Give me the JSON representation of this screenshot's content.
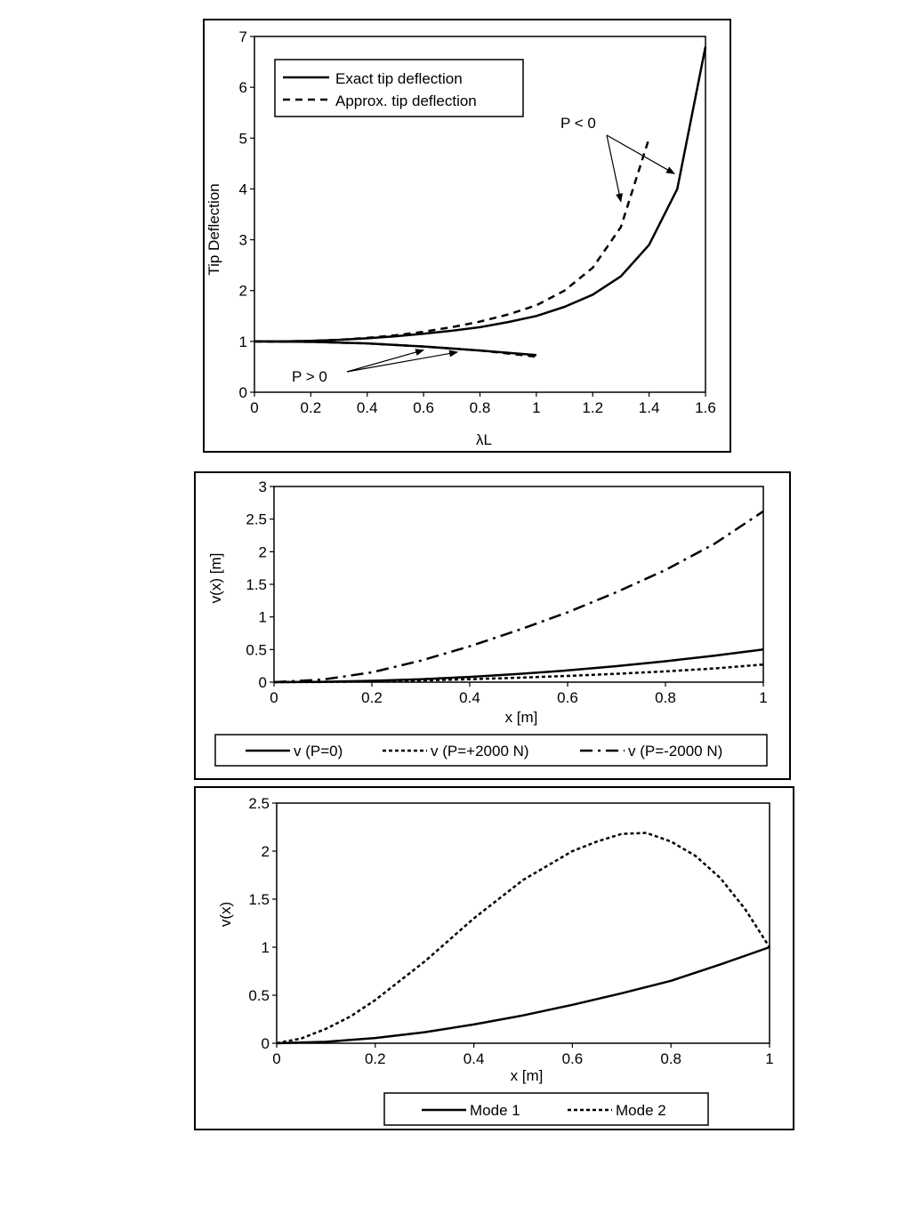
{
  "chart_data": [
    {
      "type": "line",
      "title": "",
      "xlabel": "λL",
      "ylabel": "Tip Deflection",
      "xlim": [
        0,
        1.6
      ],
      "ylim": [
        0,
        7
      ],
      "x_ticks": [
        "0",
        "0.2",
        "0.4",
        "0.6",
        "0.8",
        "1",
        "1.2",
        "1.4",
        "1.6"
      ],
      "y_ticks": [
        "0",
        "1",
        "2",
        "3",
        "4",
        "5",
        "6",
        "7"
      ],
      "legend_position": "top-left",
      "series": [
        {
          "name": "Exact tip deflection",
          "style": "solid",
          "group": "P<0",
          "x": [
            0,
            0.1,
            0.2,
            0.3,
            0.4,
            0.5,
            0.6,
            0.7,
            0.8,
            0.9,
            1.0,
            1.1,
            1.2,
            1.3,
            1.4,
            1.5,
            1.6
          ],
          "y": [
            1.0,
            1.0,
            1.01,
            1.03,
            1.06,
            1.1,
            1.15,
            1.21,
            1.28,
            1.38,
            1.5,
            1.68,
            1.92,
            2.28,
            2.9,
            4.0,
            6.8
          ]
        },
        {
          "name": "Approx. tip deflection",
          "style": "dashed",
          "group": "P<0",
          "x": [
            0,
            0.1,
            0.2,
            0.3,
            0.4,
            0.5,
            0.6,
            0.7,
            0.8,
            0.9,
            1.0,
            1.1,
            1.2,
            1.3,
            1.4
          ],
          "y": [
            1.0,
            1.0,
            1.01,
            1.03,
            1.07,
            1.12,
            1.19,
            1.28,
            1.39,
            1.53,
            1.71,
            2.0,
            2.45,
            3.25,
            5.0
          ]
        },
        {
          "name": "Exact tip deflection",
          "style": "solid",
          "group": "P>0",
          "x": [
            0,
            0.2,
            0.4,
            0.6,
            0.8,
            1.0
          ],
          "y": [
            1.0,
            0.99,
            0.96,
            0.9,
            0.82,
            0.73
          ]
        },
        {
          "name": "Approx. tip deflection",
          "style": "dashed",
          "group": "P>0",
          "x": [
            0,
            0.2,
            0.4,
            0.6,
            0.8,
            1.0
          ],
          "y": [
            1.0,
            0.99,
            0.96,
            0.9,
            0.82,
            0.7
          ]
        }
      ],
      "annotations": [
        {
          "text": "P < 0",
          "arrows_to": [
            [
              1.3,
              3.75
            ],
            [
              1.49,
              4.3
            ]
          ]
        },
        {
          "text": "P > 0",
          "arrows_to": [
            [
              0.6,
              0.83
            ],
            [
              0.72,
              0.79
            ]
          ]
        }
      ]
    },
    {
      "type": "line",
      "title": "",
      "xlabel": "x [m]",
      "ylabel": "v(x) [m]",
      "xlim": [
        0,
        1
      ],
      "ylim": [
        0,
        3
      ],
      "x_ticks": [
        "0",
        "0.2",
        "0.4",
        "0.6",
        "0.8",
        "1"
      ],
      "y_ticks": [
        "0",
        "0.5",
        "1",
        "1.5",
        "2",
        "2.5",
        "3"
      ],
      "legend_position": "bottom",
      "series": [
        {
          "name": "v (P=0)",
          "style": "solid",
          "x": [
            0,
            0.1,
            0.2,
            0.3,
            0.4,
            0.5,
            0.6,
            0.7,
            0.8,
            0.9,
            1.0
          ],
          "y": [
            0,
            0.005,
            0.02,
            0.045,
            0.08,
            0.125,
            0.18,
            0.245,
            0.32,
            0.405,
            0.5
          ]
        },
        {
          "name": "v (P=+2000 N)",
          "style": "dashed",
          "x": [
            0,
            0.1,
            0.2,
            0.3,
            0.4,
            0.5,
            0.6,
            0.7,
            0.8,
            0.9,
            1.0
          ],
          "y": [
            0,
            0.003,
            0.012,
            0.026,
            0.045,
            0.068,
            0.095,
            0.128,
            0.165,
            0.21,
            0.27
          ]
        },
        {
          "name": "v (P=-2000 N)",
          "style": "dashdot",
          "x": [
            0,
            0.1,
            0.2,
            0.3,
            0.4,
            0.5,
            0.6,
            0.7,
            0.8,
            0.9,
            1.0
          ],
          "y": [
            0,
            0.04,
            0.15,
            0.33,
            0.55,
            0.8,
            1.07,
            1.38,
            1.72,
            2.12,
            2.62
          ]
        }
      ]
    },
    {
      "type": "line",
      "title": "",
      "xlabel": "x [m]",
      "ylabel": "v(x)",
      "xlim": [
        0,
        1
      ],
      "ylim": [
        0,
        2.5
      ],
      "x_ticks": [
        "0",
        "0.2",
        "0.4",
        "0.6",
        "0.8",
        "1"
      ],
      "y_ticks": [
        "0",
        "0.5",
        "1",
        "1.5",
        "2",
        "2.5"
      ],
      "legend_position": "bottom",
      "series": [
        {
          "name": "Mode 1",
          "style": "solid",
          "x": [
            0,
            0.1,
            0.2,
            0.3,
            0.4,
            0.5,
            0.6,
            0.7,
            0.8,
            0.9,
            1.0
          ],
          "y": [
            0,
            0.015,
            0.055,
            0.115,
            0.195,
            0.29,
            0.4,
            0.52,
            0.65,
            0.82,
            1.0
          ]
        },
        {
          "name": "Mode 2",
          "style": "dashed",
          "x": [
            0,
            0.05,
            0.1,
            0.15,
            0.2,
            0.3,
            0.4,
            0.5,
            0.6,
            0.65,
            0.7,
            0.75,
            0.8,
            0.85,
            0.9,
            0.95,
            1.0
          ],
          "y": [
            0,
            0.05,
            0.15,
            0.28,
            0.45,
            0.85,
            1.3,
            1.7,
            2.0,
            2.1,
            2.18,
            2.19,
            2.1,
            1.95,
            1.72,
            1.4,
            1.0
          ]
        }
      ]
    }
  ]
}
